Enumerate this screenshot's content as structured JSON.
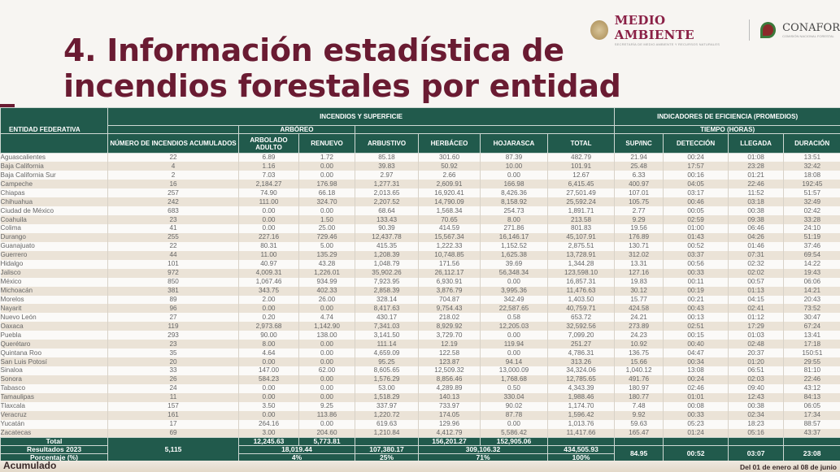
{
  "brand": {
    "medio_ambiente": "MEDIO AMBIENTE",
    "medio_ambiente_sub": "SECRETARÍA DE MEDIO AMBIENTE Y RECURSOS NATURALES",
    "conafor": "CONAFOR",
    "conafor_sub": "COMISIÓN NACIONAL FORESTAL"
  },
  "title_line1": "4. Información estadística de",
  "title_line2": "incendios forestales por entidad",
  "headers": {
    "entidad": "ENTIDAD FEDERATIVA",
    "incendios_superficie": "INCENDIOS Y SUPERFICIE",
    "arboreo": "ARBÓREO",
    "indicadores": "INDICADORES DE EFICIENCIA (PROMEDIOS)",
    "tiempo": "TIEMPO (HORAS)",
    "cols": [
      "NÚMERO DE INCENDIOS ACUMULADOS",
      "ARBOLADO ADULTO",
      "RENUEVO",
      "ARBUSTIVO",
      "HERBÁCEO",
      "HOJARASCA",
      "TOTAL",
      "SUP/INC",
      "DETECCIÓN",
      "LLEGADA",
      "DURACIÓN"
    ]
  },
  "rows": [
    [
      "Aguascalientes",
      "22",
      "6.89",
      "1.72",
      "85.18",
      "301.60",
      "87.39",
      "482.79",
      "21.94",
      "00:24",
      "01:08",
      "13:51"
    ],
    [
      "Baja California",
      "4",
      "1.16",
      "0.00",
      "39.83",
      "50.92",
      "10.00",
      "101.91",
      "25.48",
      "17:57",
      "23:28",
      "32:42"
    ],
    [
      "Baja California Sur",
      "2",
      "7.03",
      "0.00",
      "2.97",
      "2.66",
      "0.00",
      "12.67",
      "6.33",
      "00:16",
      "01:21",
      "18:08"
    ],
    [
      "Campeche",
      "16",
      "2,184.27",
      "176.98",
      "1,277.31",
      "2,609.91",
      "166.98",
      "6,415.45",
      "400.97",
      "04:05",
      "22:46",
      "192:45"
    ],
    [
      "Chiapas",
      "257",
      "74.90",
      "66.18",
      "2,013.65",
      "16,920.41",
      "8,426.36",
      "27,501.49",
      "107.01",
      "03:17",
      "11:52",
      "51:57"
    ],
    [
      "Chihuahua",
      "242",
      "111.00",
      "324.70",
      "2,207.52",
      "14,790.09",
      "8,158.92",
      "25,592.24",
      "105.75",
      "00:46",
      "03:18",
      "32:49"
    ],
    [
      "Ciudad de México",
      "683",
      "0.00",
      "0.00",
      "68.64",
      "1,568.34",
      "254.73",
      "1,891.71",
      "2.77",
      "00:05",
      "00:38",
      "02:42"
    ],
    [
      "Coahuila",
      "23",
      "0.00",
      "1.50",
      "133.43",
      "70.65",
      "8.00",
      "213.58",
      "9.29",
      "02:59",
      "09:38",
      "33:28"
    ],
    [
      "Colima",
      "41",
      "0.00",
      "25.00",
      "90.39",
      "414.59",
      "271.86",
      "801.83",
      "19.56",
      "01:00",
      "06:46",
      "24:10"
    ],
    [
      "Durango",
      "255",
      "227.16",
      "729.46",
      "12,437.78",
      "15,567.34",
      "16,146.17",
      "45,107.91",
      "176.89",
      "01:43",
      "04:26",
      "51:19"
    ],
    [
      "Guanajuato",
      "22",
      "80.31",
      "5.00",
      "415.35",
      "1,222.33",
      "1,152.52",
      "2,875.51",
      "130.71",
      "00:52",
      "01:46",
      "37:46"
    ],
    [
      "Guerrero",
      "44",
      "11.00",
      "135.29",
      "1,208.39",
      "10,748.85",
      "1,625.38",
      "13,728.91",
      "312.02",
      "03:37",
      "07:31",
      "69:54"
    ],
    [
      "Hidalgo",
      "101",
      "40.97",
      "43.28",
      "1,048.79",
      "171.56",
      "39.69",
      "1,344.28",
      "13.31",
      "00:56",
      "02:32",
      "14:22"
    ],
    [
      "Jalisco",
      "972",
      "4,009.31",
      "1,226.01",
      "35,902.26",
      "26,112.17",
      "56,348.34",
      "123,598.10",
      "127.16",
      "00:33",
      "02:02",
      "19:43"
    ],
    [
      "México",
      "850",
      "1,067.46",
      "934.99",
      "7,923.95",
      "6,930.91",
      "0.00",
      "16,857.31",
      "19.83",
      "00:11",
      "00:57",
      "06:06"
    ],
    [
      "Michoacán",
      "381",
      "343.75",
      "402.33",
      "2,858.39",
      "3,876.79",
      "3,995.36",
      "11,476.63",
      "30.12",
      "00:19",
      "01:13",
      "14:21"
    ],
    [
      "Morelos",
      "89",
      "2.00",
      "26.00",
      "328.14",
      "704.87",
      "342.49",
      "1,403.50",
      "15.77",
      "00:21",
      "04:15",
      "20:43"
    ],
    [
      "Nayarit",
      "96",
      "0.00",
      "0.00",
      "8,417.63",
      "9,754.43",
      "22,587.65",
      "40,759.71",
      "424.58",
      "00:43",
      "02:41",
      "73:52"
    ],
    [
      "Nuevo León",
      "27",
      "0.20",
      "4.74",
      "430.17",
      "218.02",
      "0.58",
      "653.72",
      "24.21",
      "00:13",
      "01:12",
      "30:47"
    ],
    [
      "Oaxaca",
      "119",
      "2,973.68",
      "1,142.90",
      "7,341.03",
      "8,929.92",
      "12,205.03",
      "32,592.56",
      "273.89",
      "02:51",
      "17:29",
      "67:24"
    ],
    [
      "Puebla",
      "293",
      "90.00",
      "138.00",
      "3,141.50",
      "3,729.70",
      "0.00",
      "7,099.20",
      "24.23",
      "00:15",
      "01:03",
      "13:41"
    ],
    [
      "Querétaro",
      "23",
      "8.00",
      "0.00",
      "111.14",
      "12.19",
      "119.94",
      "251.27",
      "10.92",
      "00:40",
      "02:48",
      "17:18"
    ],
    [
      "Quintana Roo",
      "35",
      "4.64",
      "0.00",
      "4,659.09",
      "122.58",
      "0.00",
      "4,786.31",
      "136.75",
      "04:47",
      "20:37",
      "150:51"
    ],
    [
      "San Luis Potosí",
      "20",
      "0.00",
      "0.00",
      "95.25",
      "123.87",
      "94.14",
      "313.26",
      "15.66",
      "00:34",
      "01:20",
      "29:55"
    ],
    [
      "Sinaloa",
      "33",
      "147.00",
      "62.00",
      "8,605.65",
      "12,509.32",
      "13,000.09",
      "34,324.06",
      "1,040.12",
      "13:08",
      "06:51",
      "81:10"
    ],
    [
      "Sonora",
      "26",
      "584.23",
      "0.00",
      "1,576.29",
      "8,856.46",
      "1,768.68",
      "12,785.65",
      "491.76",
      "00:24",
      "02:03",
      "22:46"
    ],
    [
      "Tabasco",
      "24",
      "0.00",
      "0.00",
      "53.00",
      "4,289.89",
      "0.50",
      "4,343.39",
      "180.97",
      "02:46",
      "09:40",
      "43:12"
    ],
    [
      "Tamaulipas",
      "11",
      "0.00",
      "0.00",
      "1,518.29",
      "140.13",
      "330.04",
      "1,988.46",
      "180.77",
      "01:01",
      "12:43",
      "84:13"
    ],
    [
      "Tlaxcala",
      "157",
      "3.50",
      "9.25",
      "337.97",
      "733.97",
      "90.02",
      "1,174.70",
      "7.48",
      "00:08",
      "00:38",
      "06:05"
    ],
    [
      "Veracruz",
      "161",
      "0.00",
      "113.86",
      "1,220.72",
      "174.05",
      "87.78",
      "1,596.42",
      "9.92",
      "00:33",
      "02:34",
      "17:34"
    ],
    [
      "Yucatán",
      "17",
      "264.16",
      "0.00",
      "619.63",
      "129.96",
      "0.00",
      "1,013.76",
      "59.63",
      "05:23",
      "18:23",
      "88:57"
    ],
    [
      "Zacatecas",
      "69",
      "3.00",
      "204.60",
      "1,210.84",
      "4,412.79",
      "5,586.42",
      "11,417.66",
      "165.47",
      "01:24",
      "05:16",
      "43:37"
    ]
  ],
  "totals": {
    "total_label": "Total",
    "arbolado": "12,245.63",
    "renuevo": "5,773.81",
    "herbaceo": "156,201.27",
    "hojarasca": "152,905.06",
    "resultados_label": "Resultados 2023",
    "num_incendios": "5,115",
    "arboreo": "18,019.44",
    "arbustivo": "107,380.17",
    "herb_hoj": "309,106.32",
    "total": "434,505.93",
    "sup_inc": "84.95",
    "deteccion": "00:52",
    "llegada": "03:07",
    "duracion": "23:08",
    "porcentaje_label": "Porcentaje (%)",
    "pct_arboreo": "4%",
    "pct_arbustivo": "25%",
    "pct_herb_hoj": "71%",
    "pct_total": "100%"
  },
  "footer": {
    "left": "Acumulado",
    "right": "Del 01 de enero al 08 de junio"
  },
  "colors": {
    "header_green": "#215a4c",
    "title_maroon": "#6a1b32",
    "stripe": "#ebe3d7"
  }
}
